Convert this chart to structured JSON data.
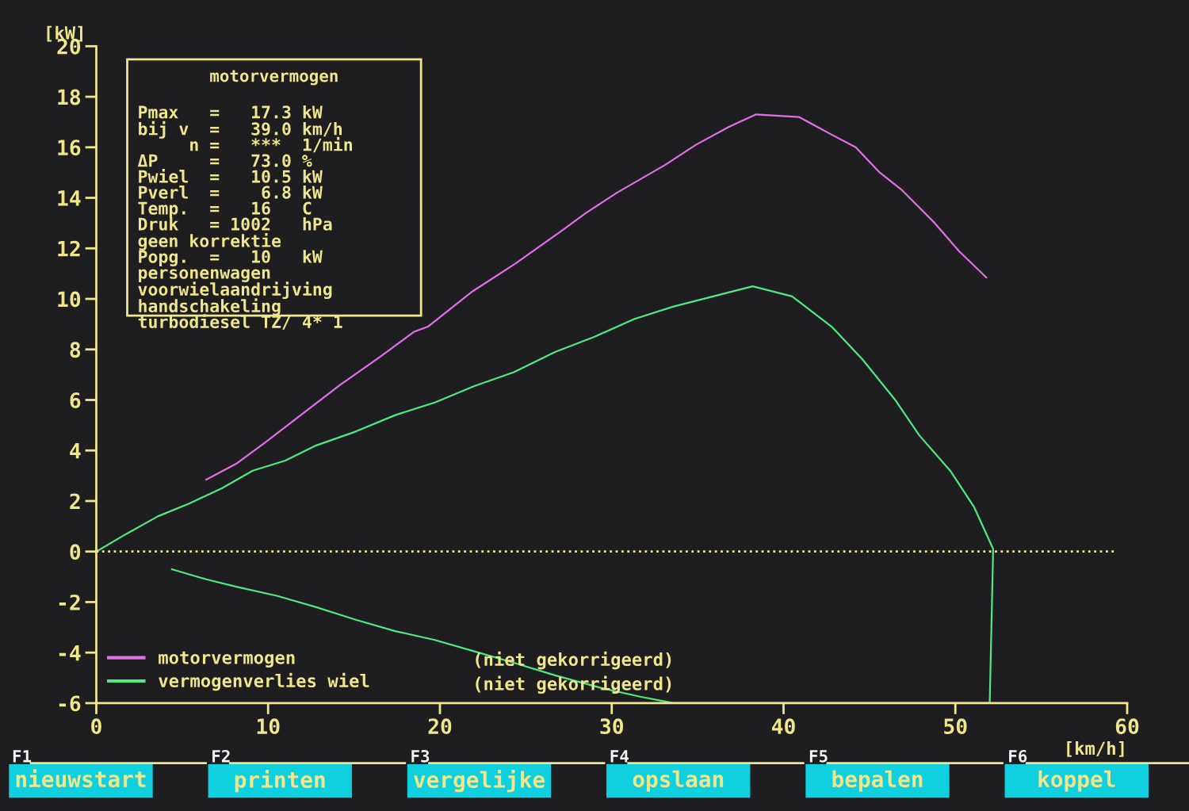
{
  "chart_data": {
    "type": "line",
    "title": "motorvermogen",
    "xlabel": "[km/h]",
    "ylabel": "[kW]",
    "xlim": [
      0,
      60
    ],
    "xticks": [
      0,
      10,
      20,
      30,
      40,
      50,
      60
    ],
    "ylim": [
      -6,
      20
    ],
    "yticks": [
      -6,
      -4,
      -2,
      0,
      2,
      4,
      6,
      8,
      10,
      12,
      14,
      16,
      18,
      20
    ],
    "grid": false,
    "legend": "bottom left",
    "marker": "none",
    "line_style": "solid",
    "ref_lines": [
      {
        "axis": "y",
        "value": 0,
        "color": "#f0e68c",
        "line_style": "dotted"
      }
    ],
    "series": [
      {
        "name": "motorvermogen",
        "color": "#e070e8",
        "x": [
          6.4,
          8.2,
          9.8,
          11.9,
          14.2,
          16.5,
          18.5,
          19.3,
          21.9,
          24.4,
          27.1,
          28.5,
          30.3,
          33.1,
          34.9,
          36.8,
          38.4,
          40.9,
          42.8,
          44.2,
          45.6,
          46.9,
          48.8,
          50.2,
          51.8
        ],
        "values": [
          2.85,
          3.5,
          4.3,
          5.4,
          6.6,
          7.7,
          8.7,
          8.9,
          10.3,
          11.4,
          12.7,
          13.4,
          14.2,
          15.3,
          16.1,
          16.8,
          17.3,
          17.2,
          16.5,
          16.0,
          15.0,
          14.3,
          13.0,
          11.9,
          10.85
        ]
      },
      {
        "name": "vermogenverlies wiel",
        "color": "#50e880",
        "x": [
          0,
          1.75,
          3.6,
          5.4,
          7.3,
          9.1,
          11.0,
          12.8,
          15.1,
          17.4,
          19.7,
          22.0,
          24.3,
          26.7,
          29.0,
          31.3,
          33.6,
          35.9,
          38.2,
          40.5,
          42.8,
          44.6,
          46.5,
          47.9,
          49.7,
          51.1,
          52.2,
          52.0,
          33.6,
          31.7,
          29.4,
          26.7,
          24.3,
          22.0,
          19.7,
          17.4,
          15.1,
          12.8,
          10.5,
          8.2,
          6.4,
          4.4
        ],
        "values": [
          0,
          0.7,
          1.4,
          1.9,
          2.5,
          3.2,
          3.6,
          4.2,
          4.75,
          5.4,
          5.9,
          6.55,
          7.1,
          7.9,
          8.5,
          9.2,
          9.7,
          10.1,
          10.5,
          10.1,
          8.9,
          7.6,
          6.0,
          4.6,
          3.2,
          1.75,
          0.1,
          -6.0,
          -6.0,
          -5.75,
          -5.4,
          -4.9,
          -4.4,
          -3.95,
          -3.5,
          -3.15,
          -2.7,
          -2.2,
          -1.75,
          -1.4,
          -1.1,
          -0.7
        ]
      }
    ],
    "annotations": [
      "Pmax   =   17.3 kW\nbij v  =   39.0 km/h\n     n =   ***  1/min\nΔP     =   73.0 %\nPwiel  =   10.5 kW\nPverl  =    6.8 kW\nTemp.  =   16   C\nDruk   = 1002   hPa\ngeen korrektie\nPopg.  =   10   kW\npersonenwagen\nvoorwielaandrijving\nhandschakeling\nturbodiesel TZ/ 4* 1",
      "(niet gekorrigeerd)",
      "(niet gekorrigeerd)",
      "F1",
      "nieuwstart",
      "F2",
      "printen",
      "F3",
      "vergelijke",
      "F4",
      "opslaan",
      "F5",
      "bepalen",
      "F6",
      "koppel"
    ]
  }
}
